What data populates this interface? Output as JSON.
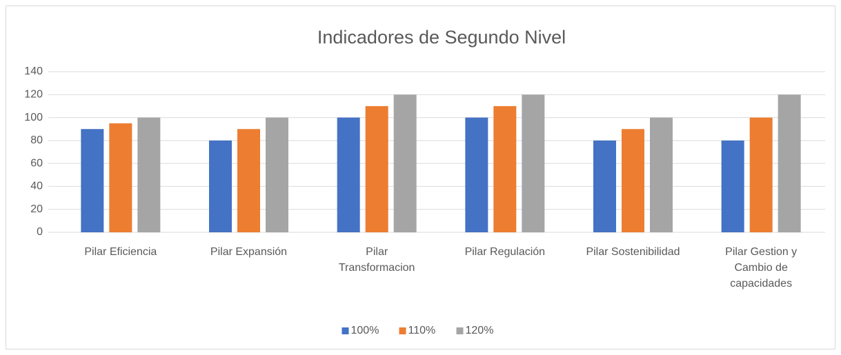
{
  "chart_data": {
    "type": "bar",
    "title": "Indicadores de Segundo Nivel",
    "categories": [
      "Pilar Eficiencia",
      "Pilar Expansión",
      "Pilar Transformacion",
      "Pilar Regulación",
      "Pilar Sostenibilidad",
      "Pilar Gestion y Cambio de capacidades"
    ],
    "series": [
      {
        "name": "100%",
        "color": "#4472c4",
        "values": [
          90,
          80,
          100,
          100,
          80,
          80
        ]
      },
      {
        "name": "110%",
        "color": "#ed7d31",
        "values": [
          95,
          90,
          110,
          110,
          90,
          100
        ]
      },
      {
        "name": "120%",
        "color": "#a5a5a5",
        "values": [
          100,
          100,
          120,
          120,
          100,
          120
        ]
      }
    ],
    "ylim": [
      0,
      140
    ],
    "yticks": [
      0,
      20,
      40,
      60,
      80,
      100,
      120,
      140
    ],
    "grid": true,
    "legend": "bottom"
  }
}
